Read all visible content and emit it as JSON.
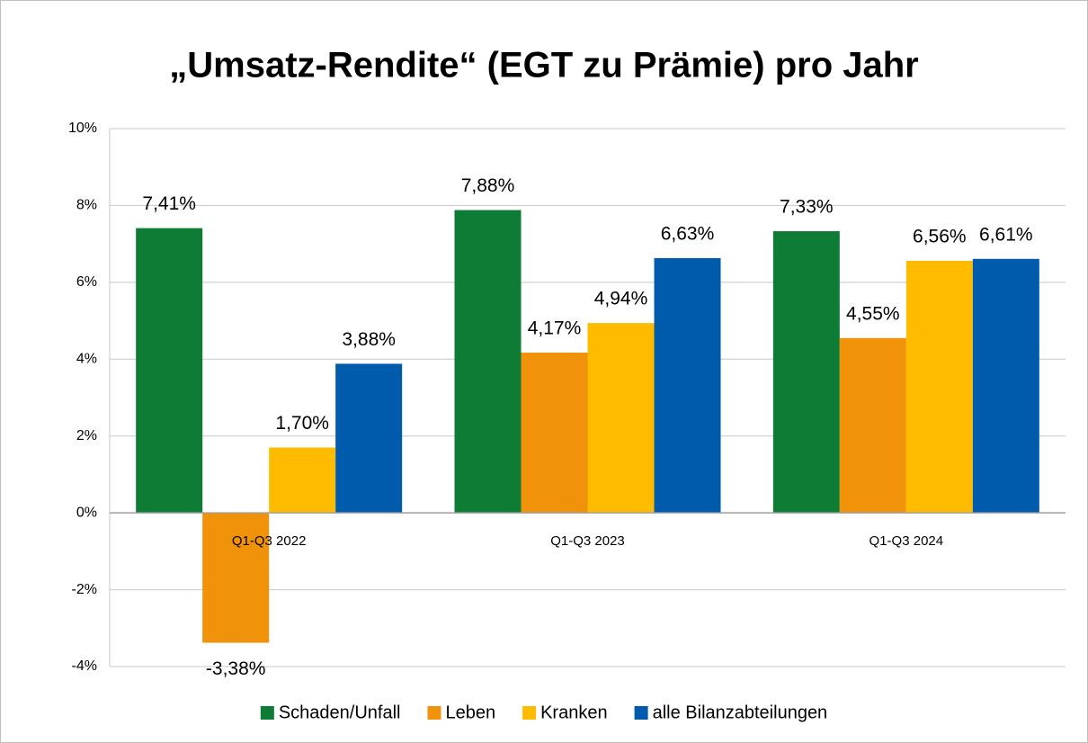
{
  "chart_data": {
    "type": "bar",
    "title": "„Umsatz-Rendite“ (EGT zu Prämie) pro Jahr",
    "categories": [
      "Q1-Q3 2022",
      "Q1-Q3 2023",
      "Q1-Q3 2024"
    ],
    "series": [
      {
        "name": "Schaden/Unfall",
        "color": "#0e7c34",
        "values": [
          7.41,
          7.88,
          7.33
        ],
        "value_labels": [
          "7,41%",
          "7,88%",
          "7,33%"
        ]
      },
      {
        "name": "Leben",
        "color": "#f0920a",
        "values": [
          -3.38,
          4.17,
          4.55
        ],
        "value_labels": [
          "-3,38%",
          "4,17%",
          "4,55%"
        ]
      },
      {
        "name": "Kranken",
        "color": "#ffbb00",
        "values": [
          1.7,
          4.94,
          6.56
        ],
        "value_labels": [
          "1,70%",
          "4,94%",
          "6,56%"
        ]
      },
      {
        "name": "alle Bilanzabteilungen",
        "color": "#005bac",
        "values": [
          3.88,
          6.63,
          6.61
        ],
        "value_labels": [
          "3,88%",
          "6,63%",
          "6,61%"
        ]
      }
    ],
    "ylim": [
      -4,
      10
    ],
    "yticks": [
      {
        "value": -4,
        "label": "-4%"
      },
      {
        "value": -2,
        "label": "-2%"
      },
      {
        "value": 0,
        "label": "0%"
      },
      {
        "value": 2,
        "label": "2%"
      },
      {
        "value": 4,
        "label": "4%"
      },
      {
        "value": 6,
        "label": "6%"
      },
      {
        "value": 8,
        "label": "8%"
      },
      {
        "value": 10,
        "label": "10%"
      }
    ],
    "grid": true,
    "legend": "bottom"
  }
}
